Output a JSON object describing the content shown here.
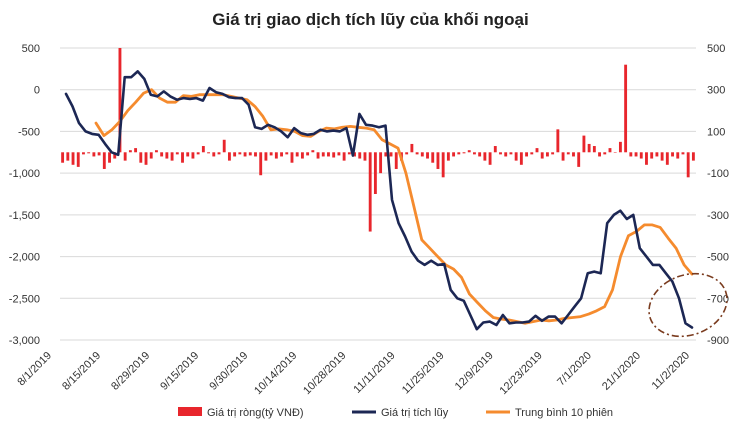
{
  "chart_data": {
    "type": "combo",
    "title": "Giá trị giao dịch tích lũy của khối ngoại",
    "left_axis": {
      "ticks": [
        "500",
        "0",
        "-500",
        "-1,000",
        "-1,500",
        "-2,000",
        "-2,500",
        "-3,000"
      ],
      "ylim": [
        -3000,
        500
      ]
    },
    "right_axis": {
      "ticks": [
        "500",
        "300",
        "100",
        "-100",
        "-300",
        "-500",
        "-700",
        "-900"
      ],
      "ylim": [
        -900,
        500
      ]
    },
    "x_labels": [
      "8/1/2019",
      "8/15/2019",
      "8/29/2019",
      "9/15/2019",
      "9/30/2019",
      "10/14/2019",
      "10/28/2019",
      "11/11/2019",
      "11/25/2019",
      "12/9/2019",
      "12/23/2019",
      "7/1/2020",
      "21/1/2020",
      "11/2/2020"
    ],
    "series": [
      {
        "name": "Giá trị ròng(tỷ VNĐ)",
        "type": "bar",
        "axis": "right",
        "color": "#e8262c",
        "values": [
          -50,
          -40,
          -60,
          -70,
          -10,
          -5,
          -20,
          -15,
          -80,
          -50,
          -30,
          500,
          -40,
          10,
          20,
          -50,
          -60,
          -30,
          10,
          -20,
          -30,
          -40,
          -10,
          -50,
          -20,
          -30,
          -10,
          30,
          -5,
          -20,
          -10,
          60,
          -40,
          -20,
          -10,
          -20,
          -15,
          -20,
          -110,
          -40,
          -15,
          -30,
          -20,
          -10,
          -50,
          -20,
          -30,
          -15,
          10,
          -30,
          -20,
          -20,
          -25,
          -15,
          -40,
          -10,
          -20,
          -30,
          -40,
          -380,
          -200,
          -100,
          -20,
          -20,
          -80,
          -40,
          -10,
          40,
          -10,
          -20,
          -30,
          -50,
          -80,
          -120,
          -40,
          -20,
          -10,
          -5,
          10,
          -10,
          -20,
          -40,
          -60,
          30,
          -10,
          -20,
          -10,
          -40,
          -60,
          -20,
          -10,
          20,
          -30,
          -20,
          -10,
          110,
          -40,
          -10,
          -20,
          -70,
          80,
          40,
          30,
          -20,
          -10,
          20,
          0,
          50,
          420,
          -20,
          -20,
          -30,
          -60,
          -30,
          -20,
          -40,
          -60,
          -20,
          -30,
          -10,
          -120,
          -40
        ]
      },
      {
        "name": "Giá trị tích lũy",
        "type": "line",
        "axis": "left",
        "color": "#1c2754",
        "values": [
          -50,
          -200,
          -400,
          -500,
          -530,
          -540,
          -650,
          -750,
          -780,
          150,
          150,
          220,
          130,
          -60,
          -80,
          -20,
          -80,
          -120,
          -100,
          -110,
          -100,
          -130,
          20,
          -30,
          -50,
          -90,
          -100,
          -100,
          -180,
          -450,
          -470,
          -420,
          -450,
          -500,
          -570,
          -460,
          -520,
          -540,
          -530,
          -480,
          -500,
          -490,
          -500,
          -460,
          -790,
          -290,
          -420,
          -430,
          -450,
          -430,
          -1320,
          -1600,
          -1760,
          -1940,
          -2050,
          -2100,
          -2050,
          -2100,
          -2090,
          -2400,
          -2500,
          -2530,
          -2700,
          -2870,
          -2790,
          -2780,
          -2820,
          -2700,
          -2800,
          -2790,
          -2790,
          -2780,
          -2710,
          -2770,
          -2720,
          -2720,
          -2800,
          -2700,
          -2600,
          -2500,
          -2200,
          -2180,
          -2200,
          -1600,
          -1500,
          -1450,
          -1550,
          -1500,
          -1900,
          -2000,
          -2100,
          -2100,
          -2200,
          -2300,
          -2500,
          -2800,
          -2850
        ]
      },
      {
        "name": "Trung bình 10 phiên",
        "type": "line",
        "axis": "left",
        "color": "#f58b2e",
        "values": [
          -400,
          -550,
          -480,
          -380,
          -250,
          -150,
          -40,
          0,
          -100,
          -150,
          -150,
          -70,
          -80,
          -60,
          -60,
          -60,
          -60,
          -80,
          -100,
          -120,
          -200,
          -320,
          -480,
          -470,
          -480,
          -500,
          -550,
          -560,
          -500,
          -460,
          -470,
          -450,
          -440,
          -450,
          -460,
          -480,
          -600,
          -650,
          -700,
          -1000,
          -1400,
          -1800,
          -1900,
          -2000,
          -2100,
          -2150,
          -2250,
          -2450,
          -2550,
          -2650,
          -2730,
          -2750,
          -2760,
          -2780,
          -2800,
          -2780,
          -2760,
          -2770,
          -2760,
          -2740,
          -2730,
          -2720,
          -2690,
          -2650,
          -2600,
          -2400,
          -2000,
          -1750,
          -1700,
          -1620,
          -1620,
          -1650,
          -1780,
          -1900,
          -2100,
          -2210
        ]
      }
    ],
    "annotation": "dashed-ellipse-highlight"
  }
}
